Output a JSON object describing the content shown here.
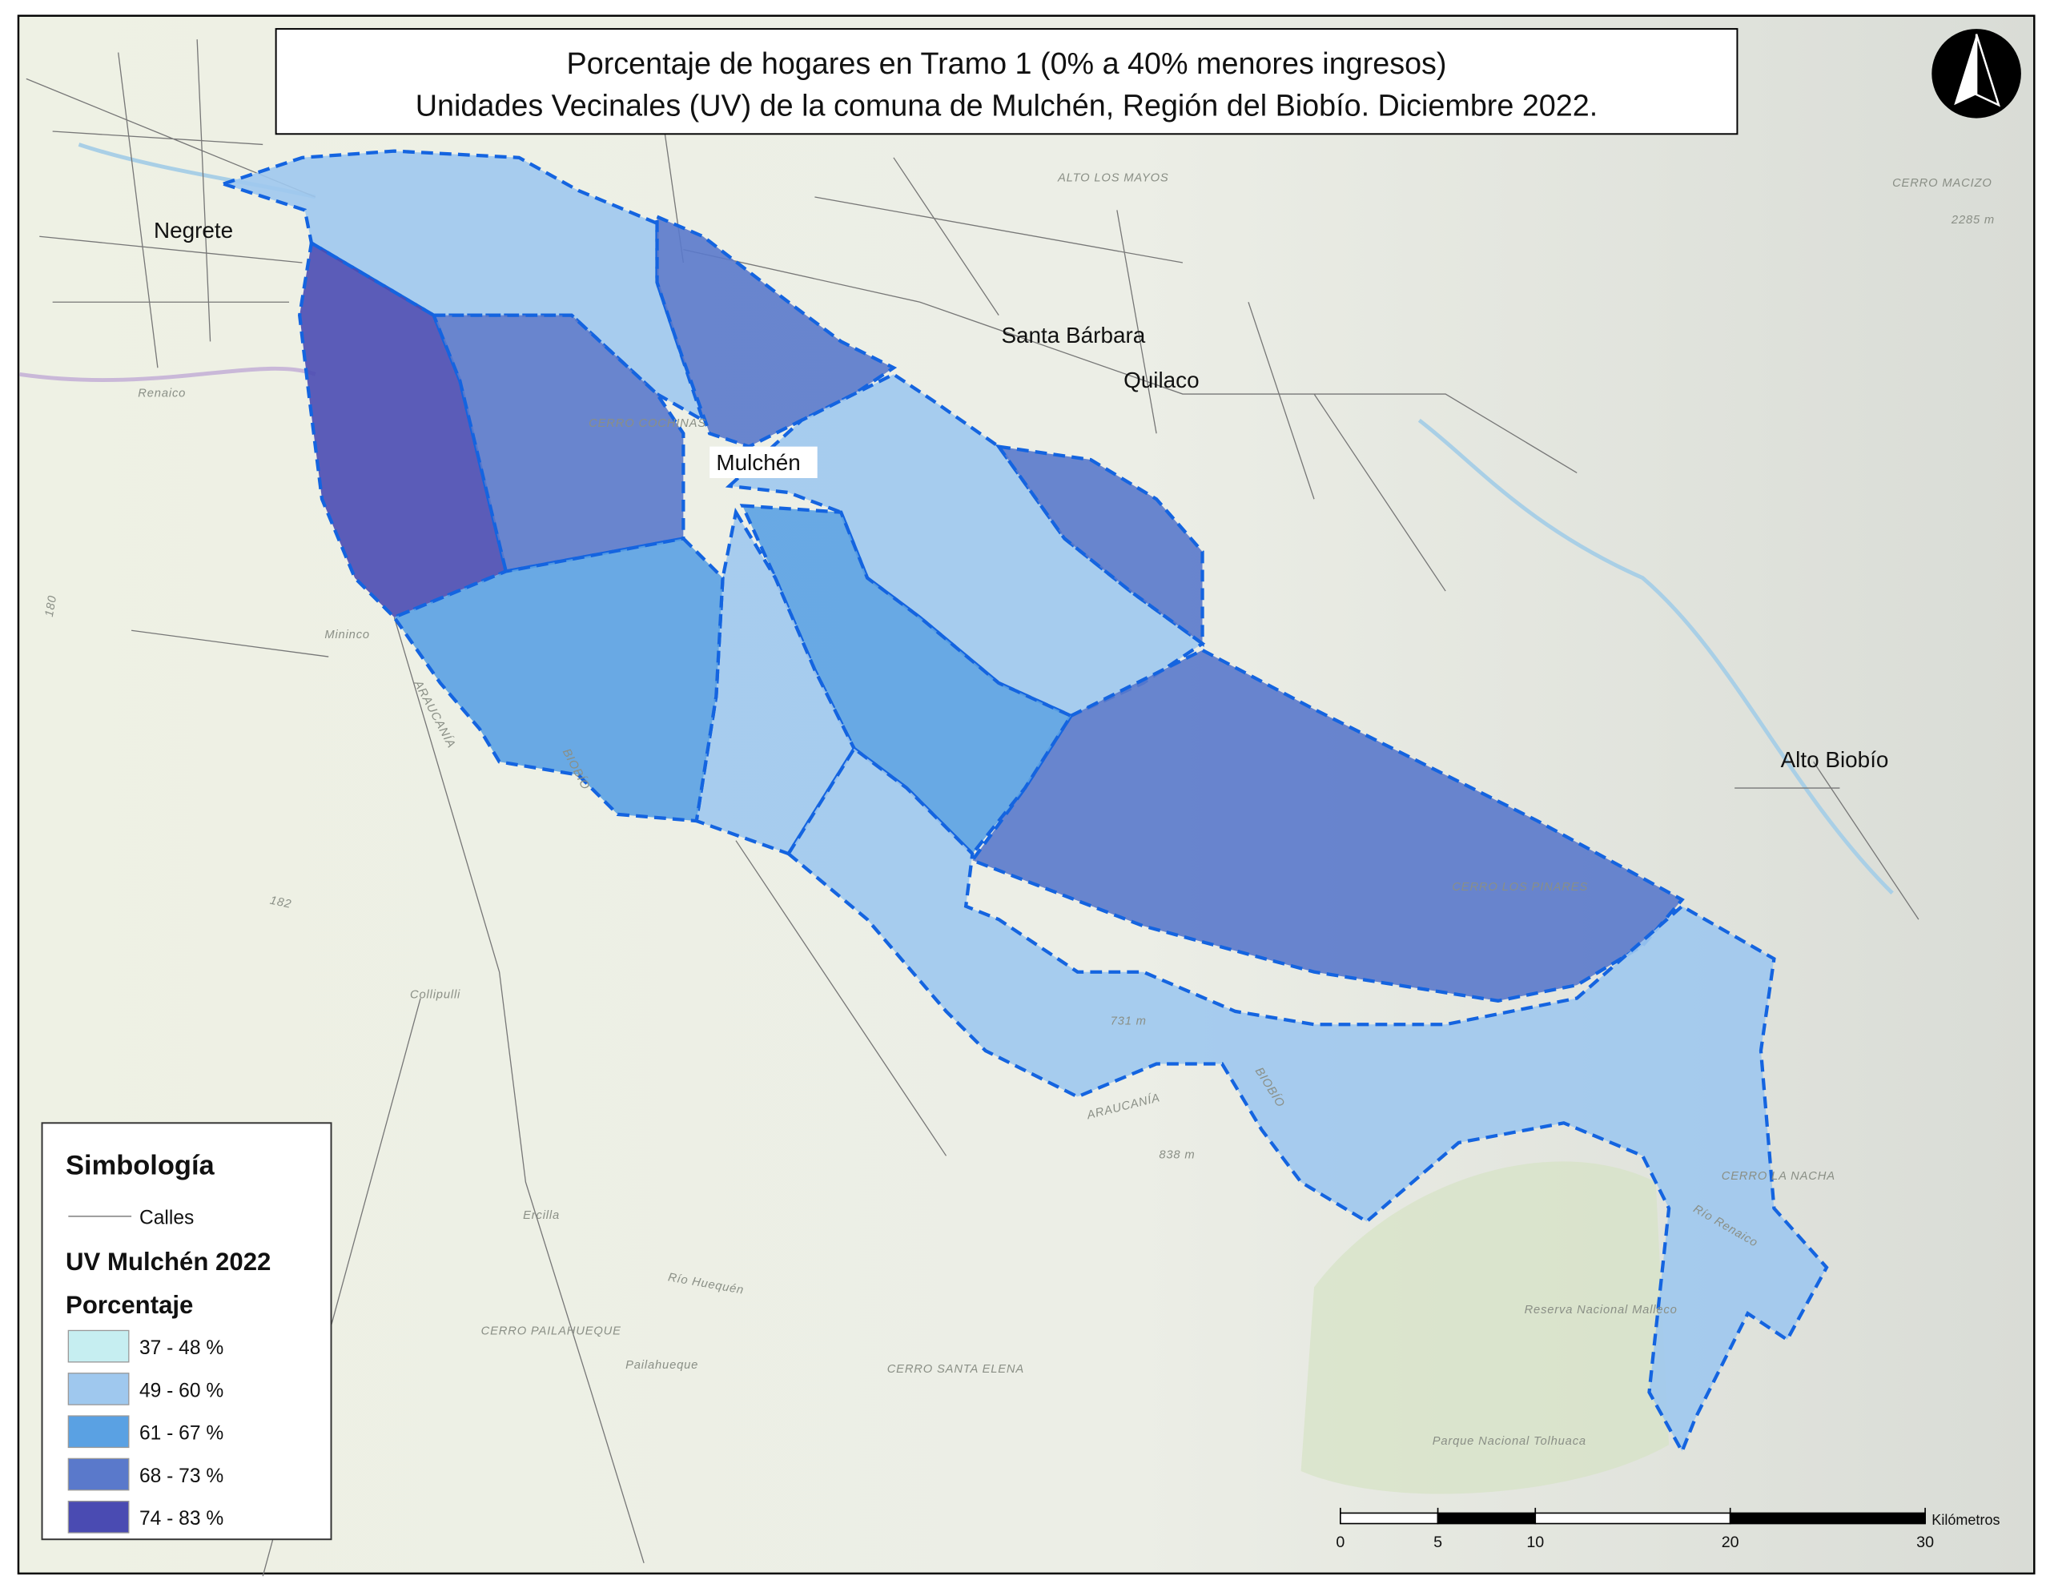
{
  "title": [
    "Porcentaje de hogares en Tramo 1 (0% a 40% menores ingresos)",
    "Unidades Vecinales (UV) de la comuna de Mulchén, Región del Biobío. Diciembre 2022."
  ],
  "places": [
    "Negrete",
    "Santa Bárbara",
    "Quilaco",
    "Mulchén",
    "Alto Biobío"
  ],
  "map_labels": [
    "ALTO LOS MAYOS",
    "CERRO MACIZO",
    "2285 m",
    "Renaico",
    "Mininco",
    "ARAUCANÍA",
    "BIOBÍO",
    "Collipulli",
    "180",
    "182",
    "731 m",
    "CERRO LOS PINARES",
    "ARAUCANÍA",
    "BIOBÍO",
    "838 m",
    "Ercilla",
    "Río Huequén",
    "CERRO PAILAHUEQUE",
    "Pailahueque",
    "CERRO SANTA ELENA",
    "Reserva Nacional Malleco",
    "Parque Nacional Tolhuaca",
    "CERRO LA NACHA",
    "Río Renaico",
    "CERRO COCHINAS"
  ],
  "legend": {
    "title": "Simbología",
    "streets": "Calles",
    "layer": "UV Mulchén 2022",
    "field": "Porcentaje",
    "items": [
      {
        "label": "37 - 48 %",
        "color": "#c6eef1"
      },
      {
        "label": "49 - 60 %",
        "color": "#9fc8ee"
      },
      {
        "label": "61 - 67 %",
        "color": "#5aa1e3"
      },
      {
        "label": "68 - 73 %",
        "color": "#5a79cb"
      },
      {
        "label": "74 - 83 %",
        "color": "#4a4bb2"
      }
    ]
  },
  "scale_bar": {
    "unit": "Kilómetros",
    "ticks": [
      0,
      5,
      10,
      20,
      30
    ]
  }
}
